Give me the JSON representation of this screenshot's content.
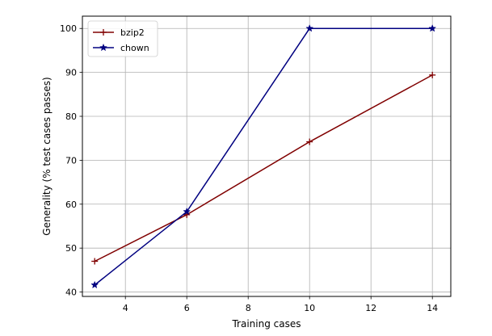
{
  "chart_data": {
    "type": "line",
    "title": "",
    "xlabel": "Training cases",
    "ylabel": "Generality (% test cases passes)",
    "xlim": [
      2.6,
      14.6
    ],
    "ylim": [
      39,
      102.8
    ],
    "xticks": [
      4,
      6,
      8,
      10,
      12,
      14
    ],
    "yticks": [
      40,
      50,
      60,
      70,
      80,
      90,
      100
    ],
    "grid": true,
    "legend_position": "top-left",
    "series": [
      {
        "name": "bzip2",
        "color": "#800000",
        "marker": "plus",
        "x": [
          3,
          6,
          10,
          14
        ],
        "y": [
          47,
          57.6,
          74.2,
          89.4
        ]
      },
      {
        "name": "chown",
        "color": "#000080",
        "marker": "star",
        "x": [
          3,
          6,
          10,
          14
        ],
        "y": [
          41.6,
          58.3,
          100,
          100
        ]
      }
    ]
  }
}
